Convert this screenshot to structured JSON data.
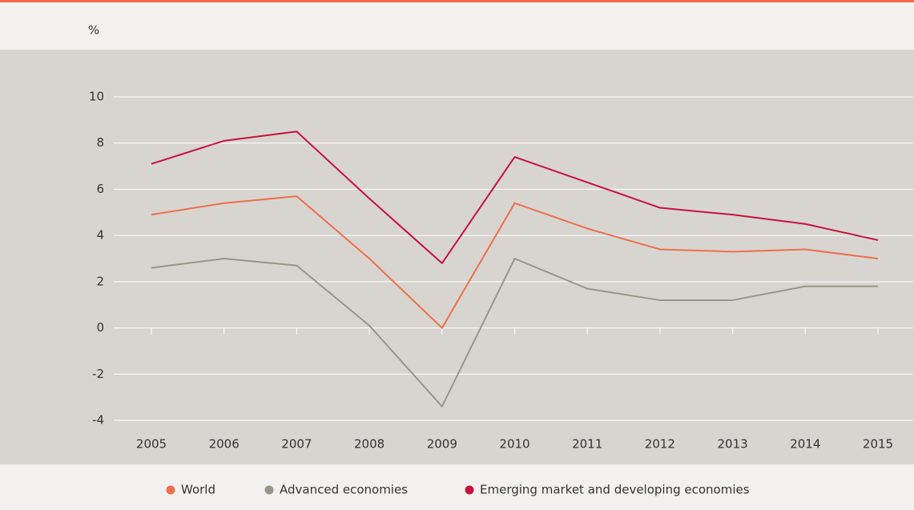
{
  "chart_data": {
    "type": "line",
    "y_label": "%",
    "categories": [
      "2005",
      "2006",
      "2007",
      "2008",
      "2009",
      "2010",
      "2011",
      "2012",
      "2013",
      "2014",
      "2015"
    ],
    "series": [
      {
        "name": "World",
        "color": "#ee6e4c",
        "values": [
          4.9,
          5.4,
          5.7,
          3.0,
          0.0,
          5.4,
          4.3,
          3.4,
          3.3,
          3.4,
          3.0
        ]
      },
      {
        "name": "Advanced economies",
        "color": "#9c9488",
        "values": [
          2.6,
          3.0,
          2.7,
          0.1,
          -3.4,
          3.0,
          1.7,
          1.2,
          1.2,
          1.8,
          1.8
        ]
      },
      {
        "name": "Emerging market and developing economies",
        "color": "#c8103e",
        "values": [
          7.1,
          8.1,
          8.5,
          5.6,
          2.8,
          7.4,
          6.3,
          5.2,
          4.9,
          4.5,
          3.8
        ]
      }
    ],
    "ylim": [
      -4,
      10
    ],
    "yticks": [
      -4,
      -2,
      0,
      2,
      4,
      6,
      8,
      10
    ],
    "grid": true
  }
}
